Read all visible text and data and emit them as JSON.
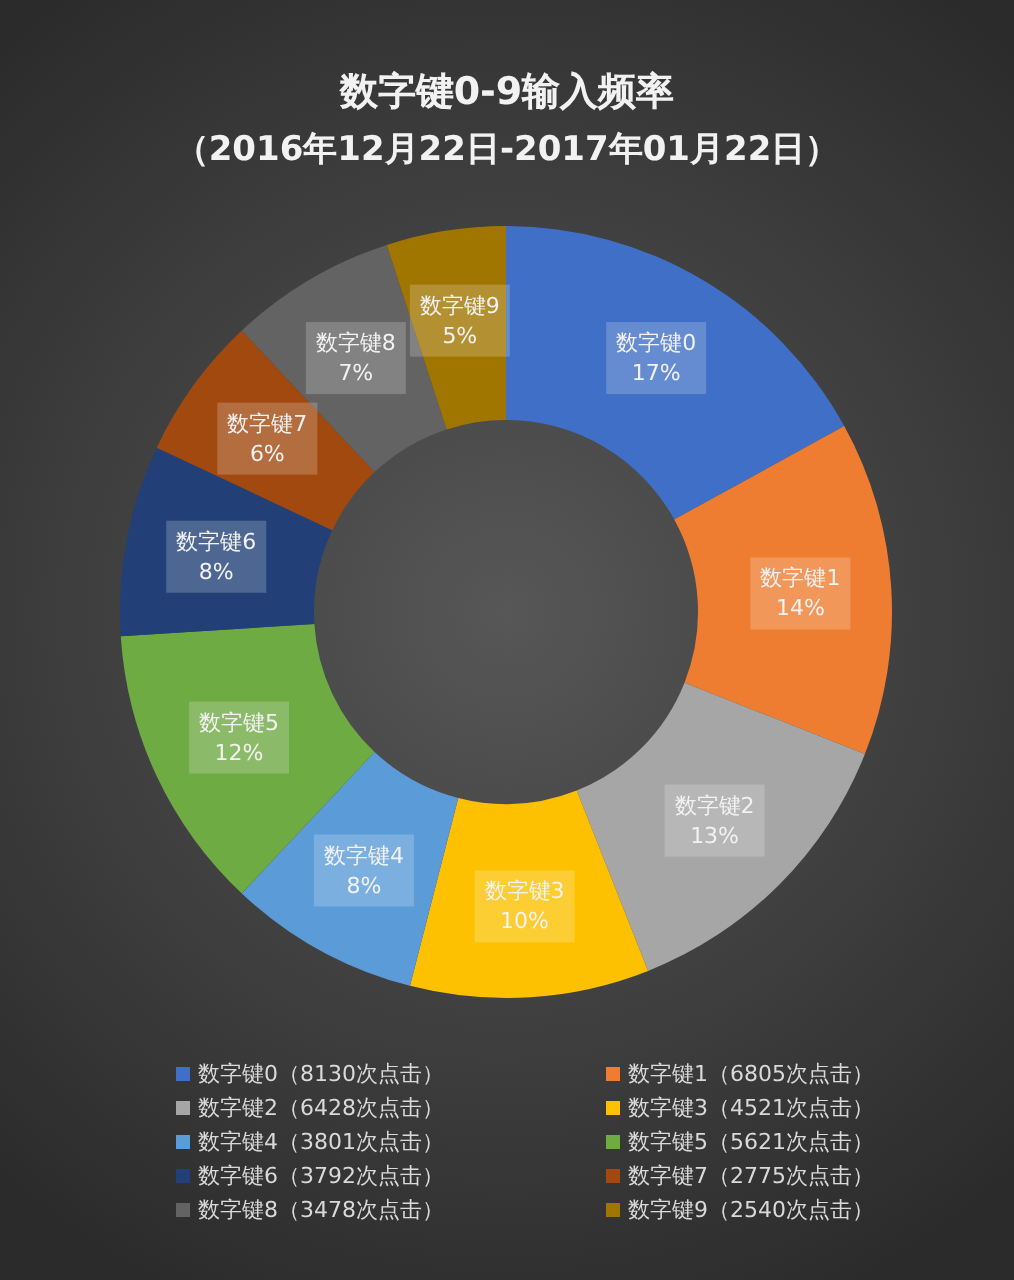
{
  "chart_data": {
    "type": "donut",
    "title": "数字键0-9输入频率",
    "subtitle": "（2016年12月22日-2017年01月22日）",
    "categories": [
      "数字键0（8130次点击）",
      "数字键1（6805次点击）",
      "数字键2（6428次点击）",
      "数字键3（4521次点击）",
      "数字键4（3801次点击）",
      "数字键5（5621次点击）",
      "数字键6（3792次点击）",
      "数字键7（2775次点击）",
      "数字键8（3478次点击）",
      "数字键9（2540次点击）"
    ],
    "values": [
      17,
      14,
      13,
      10,
      8,
      12,
      8,
      6,
      7,
      5
    ],
    "value_labels": [
      "数字键0\n17%",
      "数字键1\n14%",
      "数字键2\n13%",
      "数字键3\n10%",
      "数字键4\n8%",
      "数字键5\n12%",
      "数字键6\n8%",
      "数字键7\n6%",
      "数字键8\n7%",
      "数字键9\n5%"
    ],
    "colors": [
      "#3f6fc6",
      "#ef7d31",
      "#a6a6a6",
      "#fdc102",
      "#5a9bd8",
      "#6eab43",
      "#224077",
      "#a2490f",
      "#636363",
      "#a17600"
    ],
    "legend": "bottom"
  }
}
